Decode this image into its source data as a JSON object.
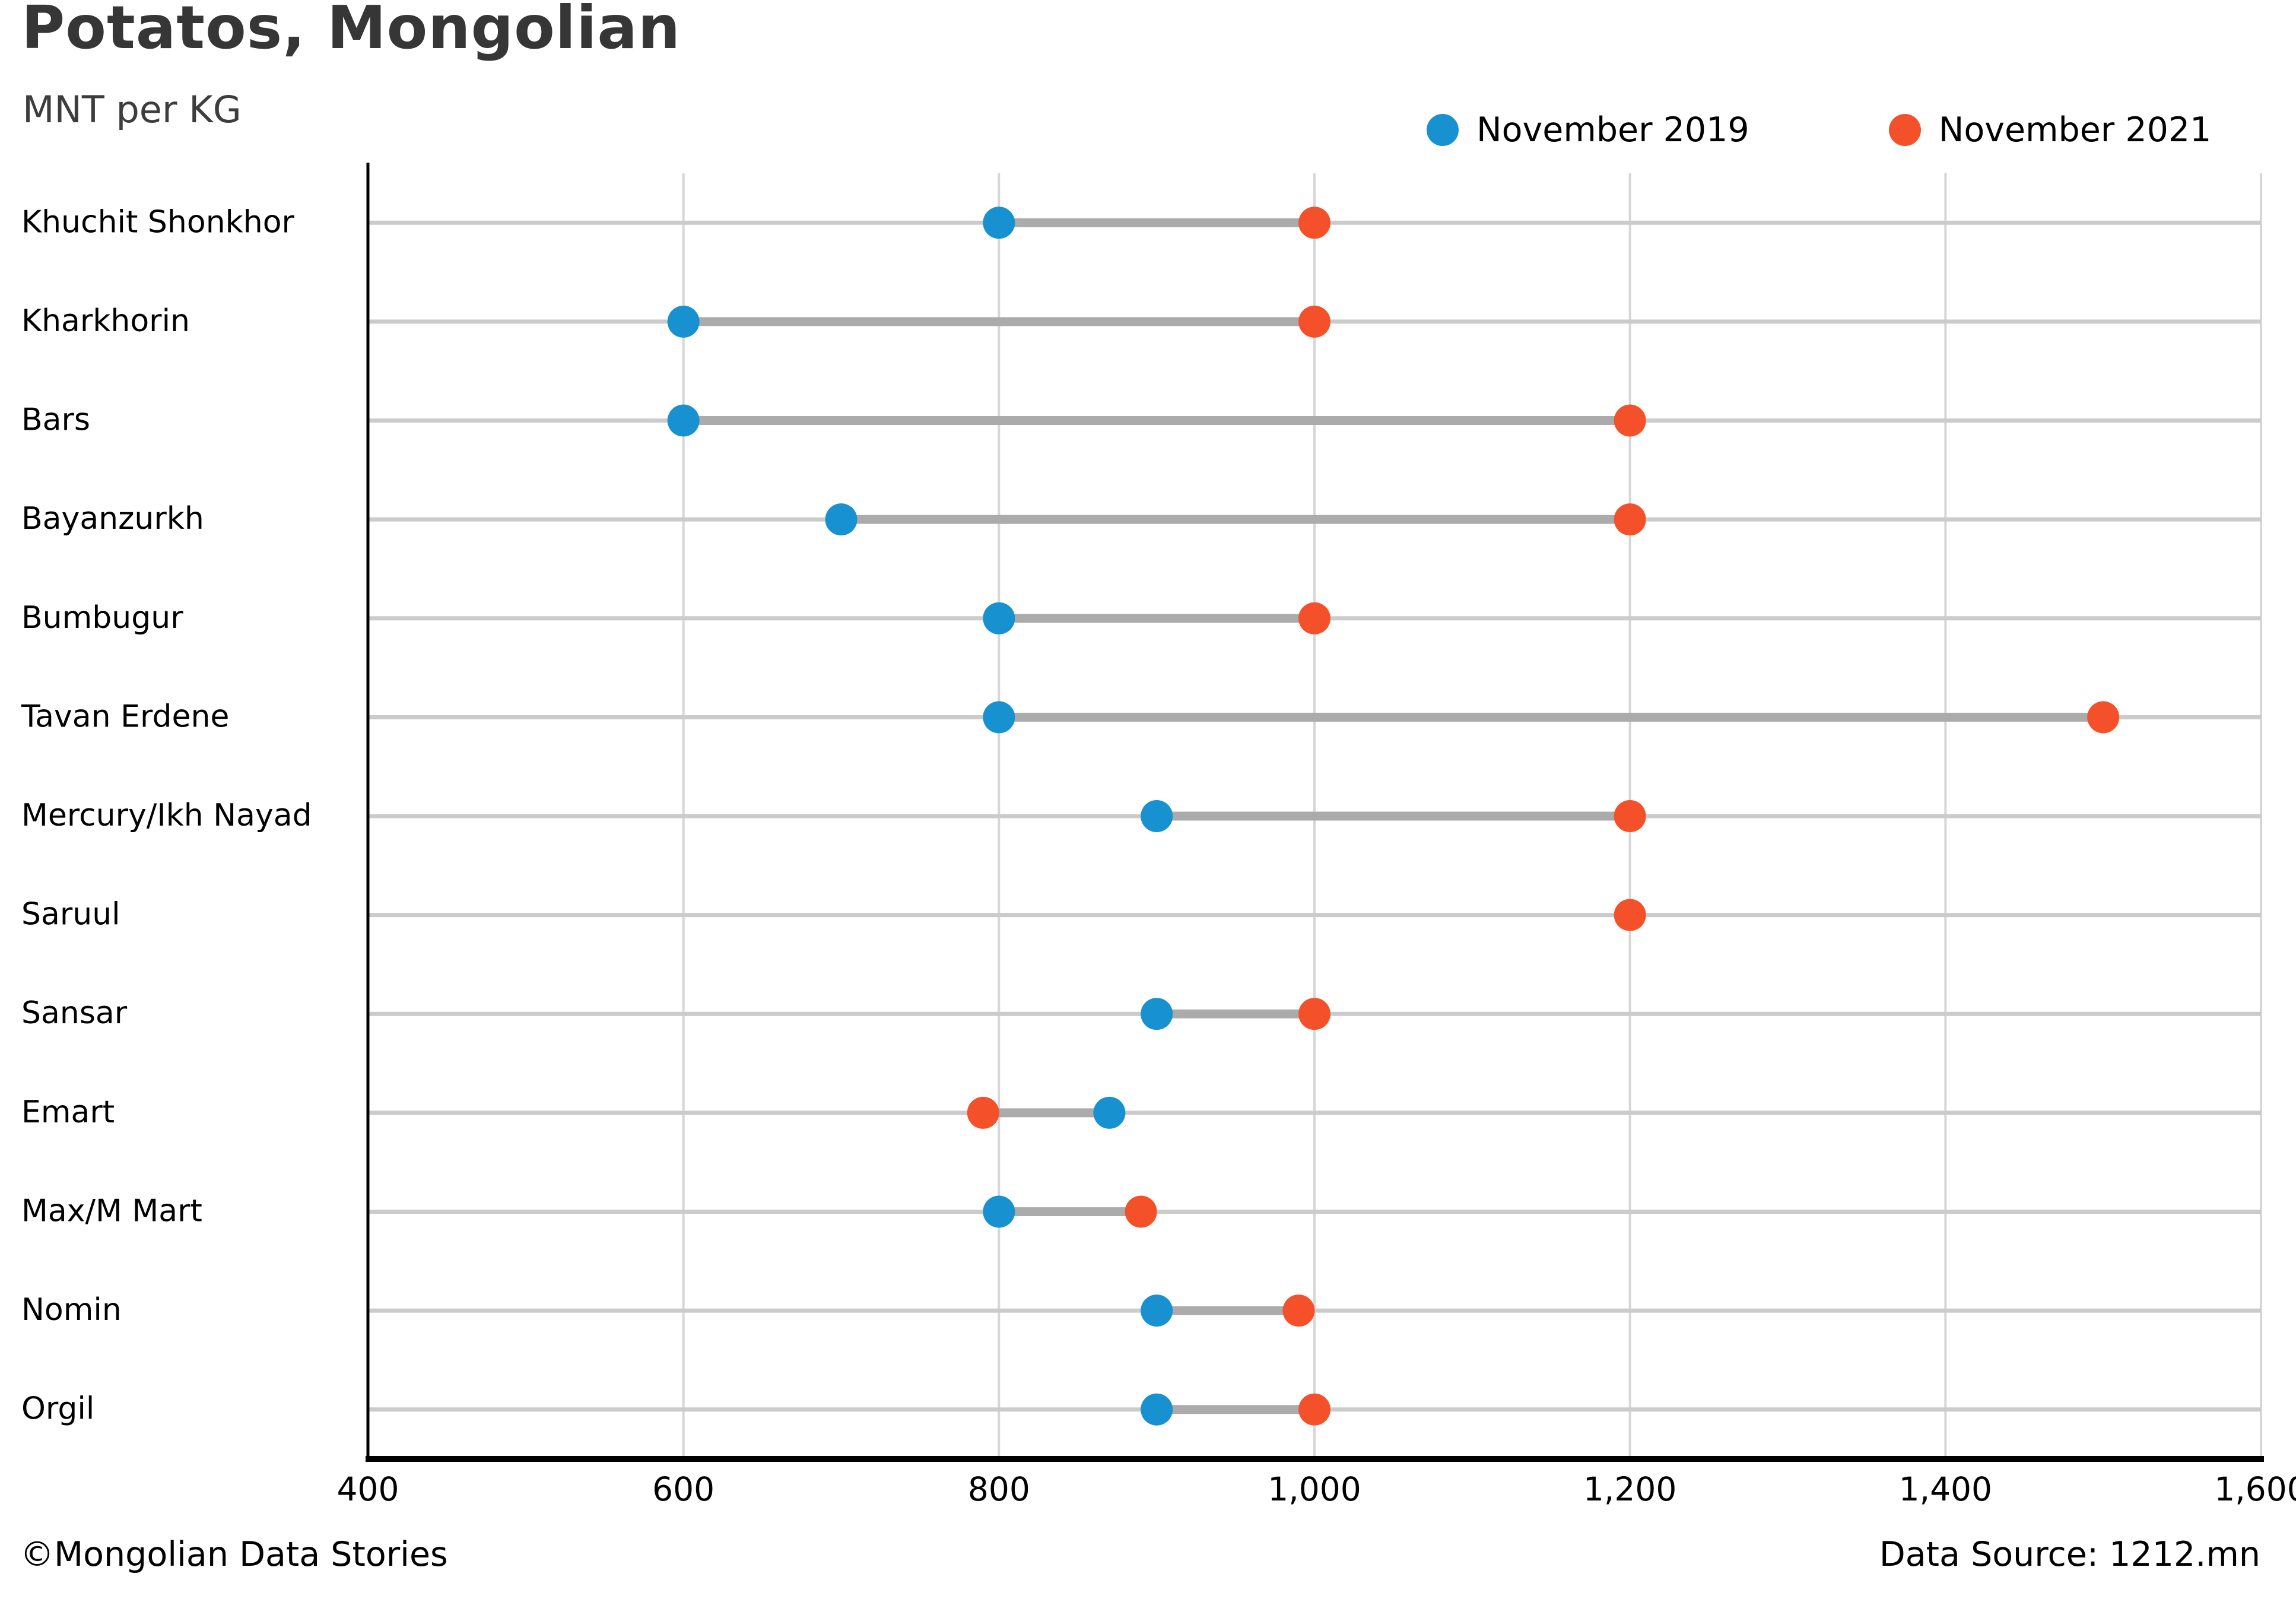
{
  "header": {
    "title": "Potatos, Mongolian",
    "subtitle": "MNT per KG"
  },
  "legend": {
    "items": [
      {
        "label": "November 2019",
        "color": "#1791d0"
      },
      {
        "label": "November 2021",
        "color": "#f4502a"
      }
    ]
  },
  "footer": {
    "copyright": "©Mongolian Data Stories",
    "source": "Data Source: 1212.mn"
  },
  "chart_data": {
    "type": "dumbbell",
    "orientation": "horizontal",
    "title": "Potatos, Mongolian",
    "subtitle": "MNT per KG",
    "categories": [
      "Khuchit Shonkhor",
      "Kharkhorin",
      "Bars",
      "Bayanzurkh",
      "Bumbugur",
      "Tavan Erdene",
      "Mercury/Ikh Nayad",
      "Saruul",
      "Sansar",
      "Emart",
      "Max/M Mart",
      "Nomin",
      "Orgil"
    ],
    "series": [
      {
        "name": "November 2019",
        "color": "#1791d0",
        "values": [
          800,
          600,
          600,
          700,
          800,
          800,
          900,
          null,
          900,
          870,
          800,
          900,
          900
        ]
      },
      {
        "name": "November 2021",
        "color": "#f4502a",
        "values": [
          1000,
          1000,
          1200,
          1200,
          1000,
          1500,
          1200,
          1200,
          1000,
          790,
          890,
          990,
          1000
        ]
      }
    ],
    "xlabel": "",
    "ylabel": "",
    "xlim": [
      400,
      1600
    ],
    "xticks": [
      400,
      600,
      800,
      1000,
      1200,
      1400,
      1600
    ],
    "xtick_labels": [
      "400",
      "600",
      "800",
      "1,000",
      "1,200",
      "1,400",
      "1,600"
    ],
    "grid": true,
    "legend_position": "top-right",
    "styles": {
      "gridline_color": "#d6d6d6",
      "rowline_color": "#cbcbcb",
      "connector_color": "#ababab",
      "axis_color": "#000000",
      "label_color": "#000000"
    }
  }
}
